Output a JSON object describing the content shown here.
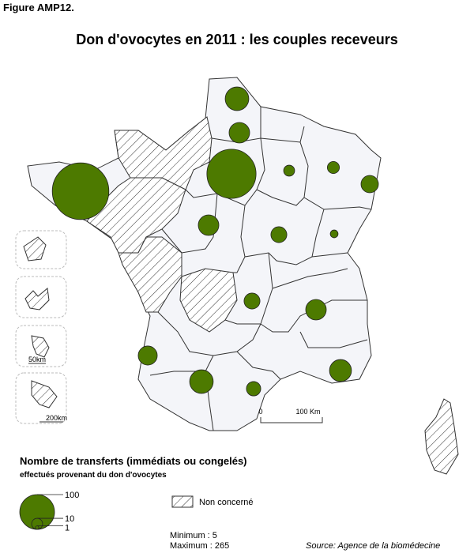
{
  "figure_label": "Figure AMP12.",
  "title": "Don d'ovocytes en 2011 : les couples receveurs",
  "bubbles": {
    "color": "#4d7a00",
    "values": [
      46,
      35,
      200,
      10,
      12,
      25,
      265,
      35,
      21,
      5,
      21,
      35,
      30,
      46,
      17,
      40
    ]
  },
  "scale_bar": {
    "start": "0",
    "end": "100 Km"
  },
  "inset_scales": [
    "50km",
    "200km"
  ],
  "legend": {
    "title": "Nombre de transferts (immédiats ou congelés)",
    "subtitle": "effectués provenant du don d'ovocytes",
    "sizes": [
      100,
      10,
      1
    ],
    "not_concerned": "Non concerné"
  },
  "minimum": "Minimum : 5",
  "maximum": "Maximum : 265",
  "source": "Source: Agence de la biomédecine"
}
